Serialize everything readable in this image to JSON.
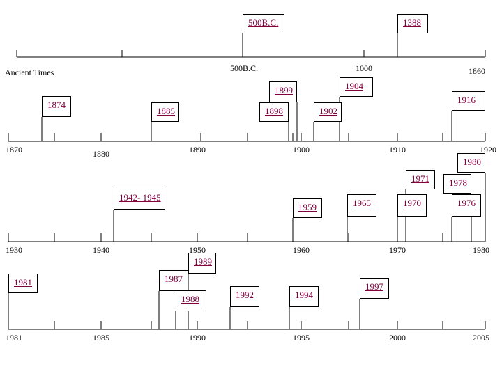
{
  "timelines": [
    {
      "id": "ancient",
      "labels": [
        "Ancient Times",
        "500B.C.",
        "1000",
        "1860"
      ],
      "events": [
        {
          "label": "500B.C."
        },
        {
          "label": "1388"
        }
      ]
    },
    {
      "id": "1870-1920",
      "labels": [
        "1870",
        "1880",
        "1890",
        "1900",
        "1910",
        "1920"
      ],
      "events": [
        {
          "label": "1874"
        },
        {
          "label": "1885"
        },
        {
          "label": "1899"
        },
        {
          "label": "1898"
        },
        {
          "label": "1904"
        },
        {
          "label": "1902"
        },
        {
          "label": "1916"
        }
      ]
    },
    {
      "id": "1930-1980",
      "labels": [
        "1930",
        "1940",
        "1950",
        "1960",
        "1970",
        "1980"
      ],
      "events": [
        {
          "label": "1942- 1945"
        },
        {
          "label": "1959"
        },
        {
          "label": "1965"
        },
        {
          "label": "1971"
        },
        {
          "label": "1970"
        },
        {
          "label": "1980"
        },
        {
          "label": "1978"
        },
        {
          "label": "1976"
        }
      ]
    },
    {
      "id": "1981-2005",
      "labels": [
        "1981",
        "1985",
        "1990",
        "1995",
        "2000",
        "2005"
      ],
      "events": [
        {
          "label": "1981"
        },
        {
          "label": "1987"
        },
        {
          "label": "1989"
        },
        {
          "label": "1988"
        },
        {
          "label": "1992"
        },
        {
          "label": "1994"
        },
        {
          "label": "1997"
        }
      ]
    }
  ],
  "colors": {
    "line": "#000000",
    "link": "#800040",
    "background": "#ffffff"
  }
}
